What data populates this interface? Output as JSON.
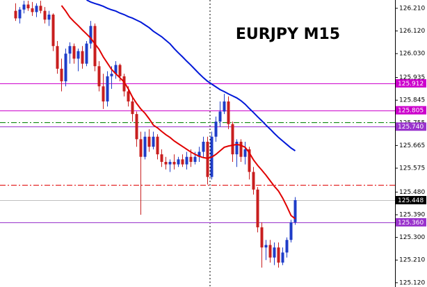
{
  "chart_data": {
    "type": "candlestick",
    "title": "EURJPY M15",
    "open": [
      126.2,
      126.17,
      126.205,
      126.225,
      126.21,
      126.195,
      126.22,
      126.2,
      126.165,
      126.185,
      126.06,
      125.97,
      125.92,
      126.03,
      126.06,
      126.01,
      126.04,
      125.99,
      126.07,
      126.14,
      125.98,
      125.9,
      125.84,
      125.94,
      125.95,
      125.985,
      125.94,
      125.88,
      125.84,
      125.79,
      125.69,
      125.62,
      125.7,
      125.66,
      125.7,
      125.63,
      125.6,
      125.59,
      125.6,
      125.59,
      125.61,
      125.59,
      125.62,
      125.6,
      125.62,
      125.64,
      125.68,
      125.54,
      125.7,
      125.76,
      125.8,
      125.84,
      125.75,
      125.63,
      125.68,
      125.62,
      125.65,
      125.56,
      125.49,
      125.34,
      125.26,
      125.27,
      125.22,
      125.26,
      125.2,
      125.24,
      125.29,
      125.36
    ],
    "high": [
      126.23,
      126.215,
      126.24,
      126.24,
      126.235,
      126.23,
      126.24,
      126.215,
      126.2,
      126.19,
      126.08,
      126.01,
      126.05,
      126.075,
      126.07,
      126.05,
      126.06,
      126.08,
      126.16,
      126.15,
      126.0,
      125.95,
      125.96,
      125.98,
      126.0,
      125.99,
      125.95,
      125.9,
      125.86,
      125.8,
      125.72,
      125.72,
      125.73,
      125.72,
      125.71,
      125.65,
      125.62,
      125.61,
      125.63,
      125.62,
      125.63,
      125.64,
      125.65,
      125.64,
      125.66,
      125.7,
      125.7,
      125.72,
      125.78,
      125.84,
      125.87,
      125.86,
      125.76,
      125.69,
      125.69,
      125.68,
      125.66,
      125.58,
      125.5,
      125.36,
      125.29,
      125.29,
      125.28,
      125.28,
      125.26,
      125.3,
      125.37,
      125.46
    ],
    "low": [
      126.16,
      126.15,
      126.19,
      126.2,
      126.18,
      126.175,
      126.19,
      126.15,
      126.14,
      126.04,
      125.95,
      125.88,
      125.9,
      125.99,
      125.99,
      125.96,
      125.97,
      125.98,
      126.05,
      125.96,
      125.88,
      125.81,
      125.82,
      125.89,
      125.93,
      125.92,
      125.86,
      125.82,
      125.76,
      125.66,
      125.39,
      125.61,
      125.64,
      125.65,
      125.61,
      125.58,
      125.57,
      125.56,
      125.57,
      125.58,
      125.58,
      125.57,
      125.58,
      125.59,
      125.6,
      125.62,
      125.51,
      125.53,
      125.68,
      125.74,
      125.79,
      125.73,
      125.6,
      125.58,
      125.6,
      125.59,
      125.53,
      125.47,
      125.32,
      125.18,
      125.21,
      125.2,
      125.19,
      125.18,
      125.19,
      125.22,
      125.28,
      125.35
    ],
    "close": [
      126.17,
      126.205,
      126.225,
      126.21,
      126.195,
      126.22,
      126.2,
      126.165,
      126.185,
      126.06,
      125.97,
      125.92,
      126.03,
      126.06,
      126.01,
      126.04,
      125.99,
      126.07,
      126.14,
      125.98,
      125.9,
      125.84,
      125.94,
      125.95,
      125.985,
      125.94,
      125.88,
      125.84,
      125.79,
      125.69,
      125.62,
      125.7,
      125.66,
      125.7,
      125.63,
      125.6,
      125.59,
      125.6,
      125.59,
      125.61,
      125.59,
      125.62,
      125.6,
      125.62,
      125.64,
      125.68,
      125.54,
      125.7,
      125.76,
      125.8,
      125.84,
      125.75,
      125.63,
      125.68,
      125.62,
      125.65,
      125.56,
      125.49,
      125.34,
      125.26,
      125.27,
      125.22,
      125.26,
      125.2,
      125.24,
      125.29,
      125.36,
      125.448
    ],
    "up_color": "#1e3cc8",
    "down_color": "#c81e1e",
    "series": [
      {
        "color": "#e00000",
        "values": [
          null,
          null,
          null,
          null,
          null,
          null,
          null,
          null,
          null,
          null,
          null,
          126.221,
          126.199,
          126.174,
          126.157,
          126.141,
          126.124,
          126.108,
          126.091,
          126.069,
          126.047,
          126.017,
          125.992,
          125.967,
          125.95,
          125.934,
          125.917,
          125.89,
          125.857,
          125.832,
          125.81,
          125.793,
          125.771,
          125.746,
          125.735,
          125.721,
          125.708,
          125.697,
          125.683,
          125.672,
          125.661,
          125.65,
          125.639,
          125.63,
          125.622,
          125.617,
          125.614,
          125.619,
          125.63,
          125.644,
          125.658,
          125.663,
          125.666,
          125.669,
          125.666,
          125.658,
          125.636,
          125.608,
          125.586,
          125.567,
          125.547,
          125.525,
          125.503,
          125.484,
          125.456,
          125.423,
          125.387,
          125.374
        ]
      },
      {
        "color": "#0018d8",
        "values": [
          null,
          null,
          null,
          null,
          null,
          null,
          null,
          null,
          null,
          null,
          null,
          null,
          null,
          null,
          null,
          null,
          null,
          126.243,
          126.235,
          126.229,
          126.224,
          126.218,
          126.21,
          126.204,
          126.199,
          126.191,
          126.185,
          126.177,
          126.171,
          126.163,
          126.155,
          126.144,
          126.133,
          126.119,
          126.108,
          126.097,
          126.083,
          126.069,
          126.05,
          126.033,
          126.017,
          126.0,
          125.984,
          125.967,
          125.95,
          125.934,
          125.92,
          125.909,
          125.898,
          125.887,
          125.879,
          125.87,
          125.862,
          125.854,
          125.843,
          125.829,
          125.812,
          125.796,
          125.779,
          125.763,
          125.746,
          125.73,
          125.713,
          125.697,
          125.683,
          125.669,
          125.655,
          125.644
        ]
      }
    ],
    "hlines": [
      {
        "value": 125.912,
        "color": "#cc00cc"
      },
      {
        "value": 125.805,
        "color": "#cc00cc"
      },
      {
        "value": 125.757,
        "color": "#008000",
        "style": "dashdot"
      },
      {
        "value": 125.74,
        "color": "#9933cc"
      },
      {
        "value": 125.51,
        "color": "#e00000",
        "style": "dashdot"
      },
      {
        "value": 125.448,
        "color": "#c0c0c0"
      },
      {
        "value": 125.36,
        "color": "#9933cc"
      }
    ],
    "price_labels": [
      {
        "value": 125.912,
        "color": "#cc00cc"
      },
      {
        "value": 125.805,
        "color": "#cc00cc"
      },
      {
        "value": 125.74,
        "label": "125.740",
        "color": "#9933cc"
      },
      {
        "value": 125.448,
        "color": "#000000"
      },
      {
        "value": 125.36,
        "label": "125.360",
        "color": "#9933cc"
      }
    ],
    "ylim": [
      125.103,
      126.243
    ],
    "yticks": [
      {
        "value": 126.21,
        "label": "126.210"
      },
      {
        "value": 126.12,
        "label": "126.120"
      },
      {
        "value": 126.03,
        "label": "126.030"
      },
      125.935,
      125.845,
      125.755,
      125.665,
      125.575,
      {
        "value": 125.48,
        "label": "125.480"
      },
      {
        "value": 125.39,
        "label": "125.390"
      },
      {
        "value": 125.3,
        "label": "125.300"
      },
      {
        "value": 125.21,
        "label": "125.210"
      },
      {
        "value": 125.12,
        "label": "125.120"
      }
    ]
  }
}
